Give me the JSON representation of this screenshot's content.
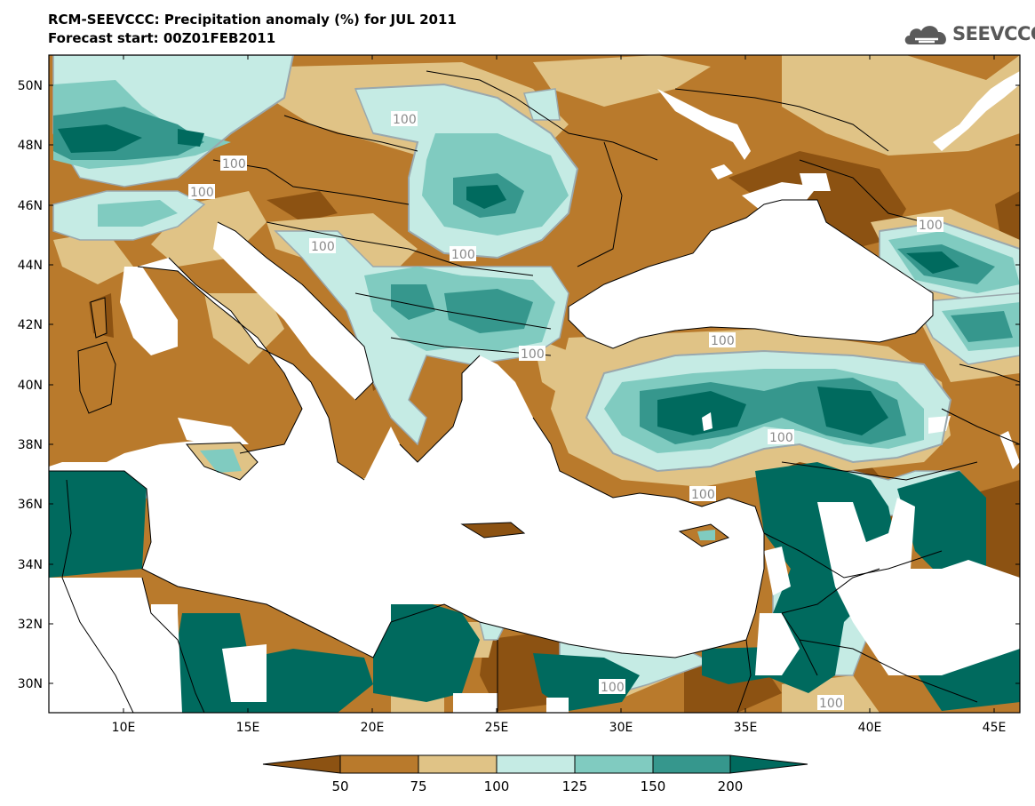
{
  "header": {
    "title_line_1": "RCM-SEEVCCC: Precipitation anomaly (%) for JUL 2011",
    "title_line_2": "Forecast start: 00Z01FEB2011"
  },
  "logo": {
    "text": "SEEVCCC",
    "icon": "cloud-icon"
  },
  "map": {
    "lat_ticks": [
      "50N",
      "48N",
      "46N",
      "44N",
      "42N",
      "40N",
      "38N",
      "36N",
      "34N",
      "32N",
      "30N"
    ],
    "lon_ticks": [
      "10E",
      "15E",
      "20E",
      "25E",
      "30E",
      "35E",
      "40E",
      "45E"
    ],
    "contour_labels": [
      "100",
      "100",
      "100",
      "100",
      "100",
      "100",
      "100",
      "100",
      "100",
      "100",
      "100"
    ]
  },
  "colorbar": {
    "levels": [
      "50",
      "75",
      "100",
      "125",
      "150",
      "200"
    ],
    "colors": [
      "#8c5212",
      "#b97a2c",
      "#e0c386",
      "#c5ebe4",
      "#80cbc0",
      "#36978d",
      "#006a5e"
    ]
  }
}
